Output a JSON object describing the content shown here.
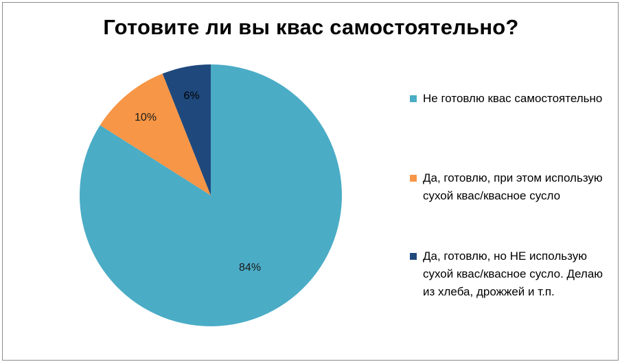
{
  "chart_data": {
    "type": "pie",
    "title": "Готовите ли вы квас самостоятельно?",
    "slices": [
      {
        "label": "Не готовлю квас самостоятельно",
        "value": 84,
        "data_label": "84%",
        "color": "#4BACC6"
      },
      {
        "label": "Да, готовлю, при этом использую сухой квас/квасное сусло",
        "value": 10,
        "data_label": "10%",
        "color": "#F79646"
      },
      {
        "label": "Да, готовлю, но НЕ использую сухой квас/квасное сусло. Делаю из хлеба, дрожжей и т.п.",
        "value": 6,
        "data_label": "6%",
        "color": "#1F497D"
      }
    ],
    "legend_position": "right"
  }
}
